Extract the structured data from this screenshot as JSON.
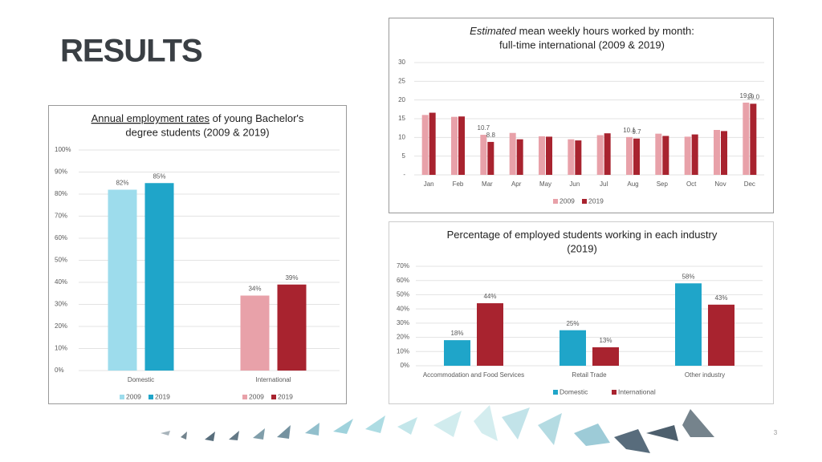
{
  "slide": {
    "title": "RESULTS",
    "page_number": 3
  },
  "chart_data": [
    {
      "type": "bar",
      "title_emphasis": "Estimated",
      "title": "mean weekly hours worked by month:",
      "subtitle": "full-time international (2009 & 2019)",
      "categories": [
        "Jan",
        "Feb",
        "Mar",
        "Apr",
        "May",
        "Jun",
        "Jul",
        "Aug",
        "Sep",
        "Oct",
        "Nov",
        "Dec"
      ],
      "series": [
        {
          "name": "2009",
          "color": "#e8a1a9",
          "values": [
            16.0,
            15.5,
            10.7,
            11.2,
            10.3,
            9.5,
            10.6,
            10.1,
            11.0,
            10.2,
            12.0,
            19.3
          ],
          "value_labels": [
            null,
            null,
            "10.7",
            null,
            null,
            null,
            null,
            "10.1",
            null,
            null,
            null,
            "19.3"
          ]
        },
        {
          "name": "2019",
          "color": "#a8232f",
          "values": [
            16.6,
            15.6,
            8.8,
            9.5,
            10.2,
            9.2,
            11.1,
            9.7,
            10.4,
            10.8,
            11.7,
            19.0
          ],
          "value_labels": [
            null,
            null,
            "8.8",
            null,
            null,
            null,
            null,
            "9.7",
            null,
            null,
            null,
            "19.0"
          ]
        }
      ],
      "ylim": [
        0,
        30
      ],
      "yticks": [
        {
          "value": 0,
          "label": "-"
        },
        5,
        10,
        15,
        20,
        25,
        30
      ],
      "grid": true,
      "legend": "bottom"
    },
    {
      "type": "bar",
      "title_emphasis": "Annual employment rates",
      "title": "of young Bachelor's",
      "subtitle": "degree students (2009 & 2019)",
      "categories": [
        "Domestic",
        "International"
      ],
      "series": [
        {
          "name": "2009",
          "colors": [
            "#9ddcec",
            "#e8a1a9"
          ],
          "values": [
            82,
            34
          ],
          "value_labels": [
            "82%",
            "34%"
          ]
        },
        {
          "name": "2019",
          "colors": [
            "#1fa5c9",
            "#a8232f"
          ],
          "values": [
            85,
            39
          ],
          "value_labels": [
            "85%",
            "39%"
          ]
        }
      ],
      "ylim": [
        0,
        100
      ],
      "yticks": [
        {
          "value": 0,
          "label": "0%"
        },
        {
          "value": 10,
          "label": "10%"
        },
        {
          "value": 20,
          "label": "20%"
        },
        {
          "value": 30,
          "label": "30%"
        },
        {
          "value": 40,
          "label": "40%"
        },
        {
          "value": 50,
          "label": "50%"
        },
        {
          "value": 60,
          "label": "60%"
        },
        {
          "value": 70,
          "label": "70%"
        },
        {
          "value": 80,
          "label": "80%"
        },
        {
          "value": 90,
          "label": "90%"
        },
        {
          "value": 100,
          "label": "100%"
        }
      ],
      "grid": true,
      "legend": "bottom"
    },
    {
      "type": "bar",
      "title": "Percentage of employed students working in each industry",
      "subtitle": "(2019)",
      "categories": [
        "Accommodation and Food Services",
        "Retail Trade",
        "Other industry"
      ],
      "series": [
        {
          "name": "Domestic",
          "color": "#1fa5c9",
          "values": [
            18,
            25,
            58
          ],
          "value_labels": [
            "18%",
            "25%",
            "58%"
          ]
        },
        {
          "name": "International",
          "color": "#a8232f",
          "values": [
            44,
            13,
            43
          ],
          "value_labels": [
            "44%",
            "13%",
            "43%"
          ]
        }
      ],
      "ylim": [
        0,
        70
      ],
      "yticks": [
        {
          "value": 0,
          "label": "0%"
        },
        {
          "value": 10,
          "label": "10%"
        },
        {
          "value": 20,
          "label": "20%"
        },
        {
          "value": 30,
          "label": "30%"
        },
        {
          "value": 40,
          "label": "40%"
        },
        {
          "value": 50,
          "label": "50%"
        },
        {
          "value": 60,
          "label": "60%"
        },
        {
          "value": 70,
          "label": "70%"
        }
      ],
      "grid": true,
      "legend": "bottom"
    }
  ]
}
